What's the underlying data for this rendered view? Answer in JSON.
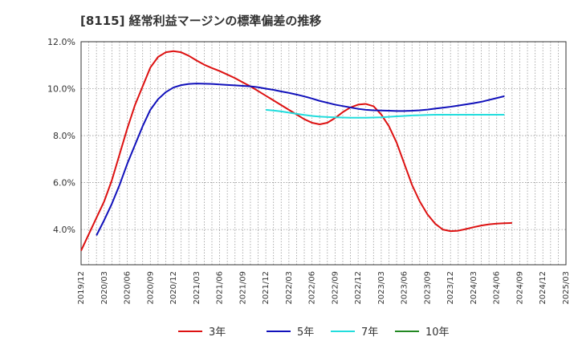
{
  "chart_data": {
    "type": "line",
    "title": "[8115]  経常利益マージンの標準偏差の推移",
    "xlabel": "",
    "ylabel": "",
    "ylim": [
      2.5,
      12.0
    ],
    "ytick_values": [
      4.0,
      6.0,
      8.0,
      10.0,
      12.0
    ],
    "ytick_labels": [
      "4.0%",
      "6.0%",
      "8.0%",
      "10.0%",
      "12.0%"
    ],
    "x_labels": [
      "2019/12",
      "2020/03",
      "2020/06",
      "2020/09",
      "2020/12",
      "2021/03",
      "2021/06",
      "2021/09",
      "2021/12",
      "2022/03",
      "2022/06",
      "2022/09",
      "2022/12",
      "2023/03",
      "2023/06",
      "2023/09",
      "2023/12",
      "2024/03",
      "2024/06",
      "2024/09",
      "2024/12",
      "2025/03"
    ],
    "grid": true,
    "legend_position": "bottom",
    "series": [
      {
        "name": "3年",
        "color": "#dd1111",
        "points": [
          [
            0,
            3.1
          ],
          [
            1,
            3.8
          ],
          [
            2,
            4.5
          ],
          [
            3,
            5.2
          ],
          [
            4,
            6.1
          ],
          [
            5,
            7.2
          ],
          [
            6,
            8.3
          ],
          [
            7,
            9.3
          ],
          [
            8,
            10.1
          ],
          [
            9,
            10.9
          ],
          [
            10,
            11.35
          ],
          [
            11,
            11.55
          ],
          [
            12,
            11.6
          ],
          [
            13,
            11.55
          ],
          [
            14,
            11.4
          ],
          [
            15,
            11.2
          ],
          [
            16,
            11.02
          ],
          [
            17,
            10.88
          ],
          [
            18,
            10.75
          ],
          [
            19,
            10.6
          ],
          [
            20,
            10.45
          ],
          [
            21,
            10.27
          ],
          [
            22,
            10.1
          ],
          [
            23,
            9.9
          ],
          [
            24,
            9.7
          ],
          [
            25,
            9.5
          ],
          [
            26,
            9.3
          ],
          [
            27,
            9.1
          ],
          [
            28,
            8.9
          ],
          [
            29,
            8.7
          ],
          [
            30,
            8.55
          ],
          [
            31,
            8.48
          ],
          [
            32,
            8.55
          ],
          [
            33,
            8.75
          ],
          [
            34,
            9.0
          ],
          [
            35,
            9.2
          ],
          [
            36,
            9.32
          ],
          [
            37,
            9.35
          ],
          [
            38,
            9.25
          ],
          [
            39,
            8.9
          ],
          [
            40,
            8.4
          ],
          [
            41,
            7.7
          ],
          [
            42,
            6.8
          ],
          [
            43,
            5.9
          ],
          [
            44,
            5.2
          ],
          [
            45,
            4.65
          ],
          [
            46,
            4.25
          ],
          [
            47,
            4.0
          ],
          [
            48,
            3.93
          ],
          [
            49,
            3.95
          ],
          [
            50,
            4.02
          ],
          [
            51,
            4.1
          ],
          [
            52,
            4.17
          ],
          [
            53,
            4.22
          ],
          [
            54,
            4.25
          ],
          [
            55,
            4.27
          ],
          [
            56,
            4.28
          ]
        ]
      },
      {
        "name": "5年",
        "color": "#1111bb",
        "points": [
          [
            2,
            3.75
          ],
          [
            3,
            4.4
          ],
          [
            4,
            5.1
          ],
          [
            5,
            5.9
          ],
          [
            6,
            6.8
          ],
          [
            7,
            7.6
          ],
          [
            8,
            8.4
          ],
          [
            9,
            9.1
          ],
          [
            10,
            9.55
          ],
          [
            11,
            9.85
          ],
          [
            12,
            10.05
          ],
          [
            13,
            10.15
          ],
          [
            14,
            10.2
          ],
          [
            15,
            10.22
          ],
          [
            16,
            10.21
          ],
          [
            17,
            10.2
          ],
          [
            18,
            10.18
          ],
          [
            19,
            10.16
          ],
          [
            20,
            10.14
          ],
          [
            21,
            10.12
          ],
          [
            22,
            10.1
          ],
          [
            23,
            10.06
          ],
          [
            24,
            10.0
          ],
          [
            25,
            9.95
          ],
          [
            26,
            9.88
          ],
          [
            27,
            9.82
          ],
          [
            28,
            9.75
          ],
          [
            29,
            9.67
          ],
          [
            30,
            9.58
          ],
          [
            31,
            9.48
          ],
          [
            32,
            9.4
          ],
          [
            33,
            9.32
          ],
          [
            34,
            9.26
          ],
          [
            35,
            9.2
          ],
          [
            36,
            9.14
          ],
          [
            37,
            9.1
          ],
          [
            38,
            9.08
          ],
          [
            39,
            9.07
          ],
          [
            40,
            9.06
          ],
          [
            41,
            9.05
          ],
          [
            42,
            9.05
          ],
          [
            43,
            9.06
          ],
          [
            44,
            9.08
          ],
          [
            45,
            9.11
          ],
          [
            46,
            9.15
          ],
          [
            47,
            9.19
          ],
          [
            48,
            9.23
          ],
          [
            49,
            9.28
          ],
          [
            50,
            9.33
          ],
          [
            51,
            9.38
          ],
          [
            52,
            9.44
          ],
          [
            53,
            9.52
          ],
          [
            54,
            9.6
          ],
          [
            55,
            9.68
          ]
        ]
      },
      {
        "name": "7年",
        "color": "#22dddd",
        "points": [
          [
            24,
            9.1
          ],
          [
            25,
            9.07
          ],
          [
            26,
            9.03
          ],
          [
            27,
            8.98
          ],
          [
            28,
            8.93
          ],
          [
            29,
            8.88
          ],
          [
            30,
            8.84
          ],
          [
            31,
            8.81
          ],
          [
            32,
            8.79
          ],
          [
            33,
            8.78
          ],
          [
            34,
            8.77
          ],
          [
            35,
            8.76
          ],
          [
            36,
            8.76
          ],
          [
            37,
            8.76
          ],
          [
            38,
            8.77
          ],
          [
            39,
            8.78
          ],
          [
            40,
            8.8
          ],
          [
            41,
            8.82
          ],
          [
            42,
            8.84
          ],
          [
            43,
            8.86
          ],
          [
            44,
            8.87
          ],
          [
            45,
            8.88
          ],
          [
            46,
            8.89
          ],
          [
            47,
            8.89
          ],
          [
            48,
            8.89
          ],
          [
            49,
            8.89
          ],
          [
            50,
            8.89
          ],
          [
            51,
            8.89
          ],
          [
            52,
            8.89
          ],
          [
            53,
            8.89
          ],
          [
            54,
            8.89
          ],
          [
            55,
            8.89
          ]
        ]
      },
      {
        "name": "10年",
        "color": "#228822",
        "points": []
      }
    ]
  }
}
